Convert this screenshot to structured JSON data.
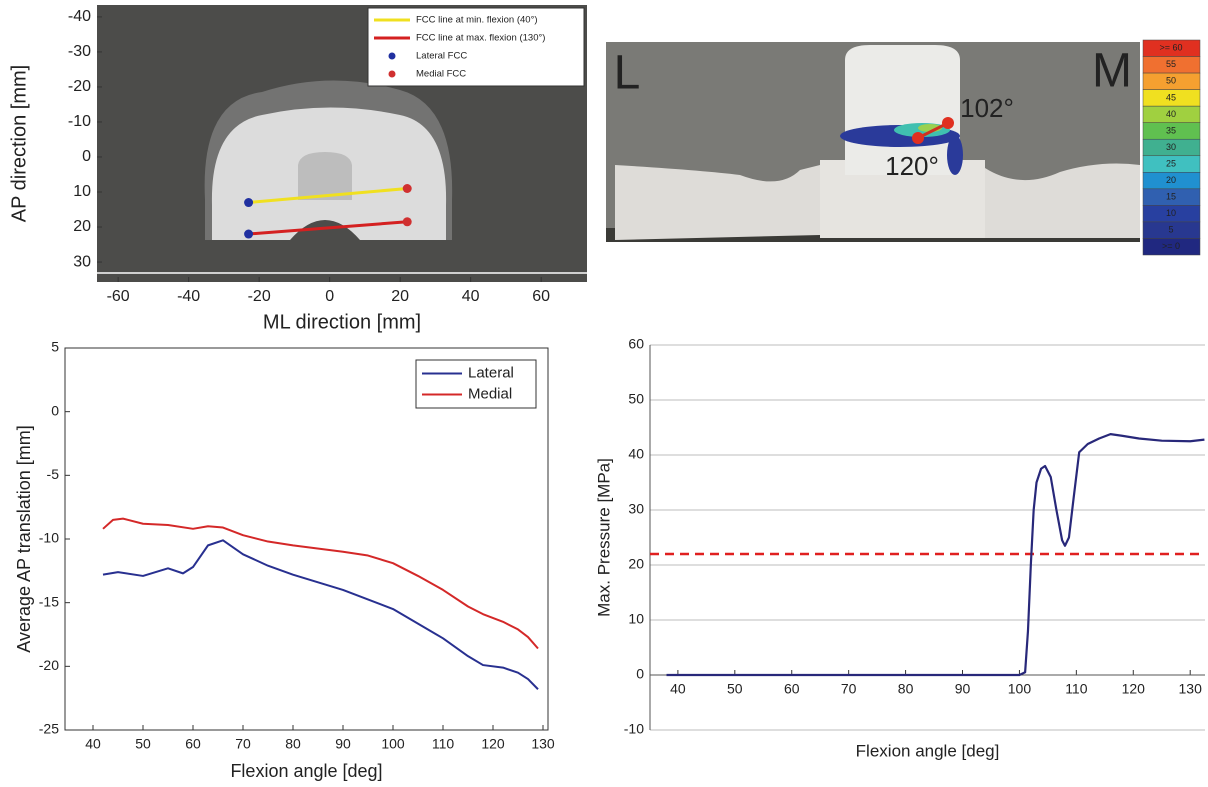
{
  "chart_data": [
    {
      "type": "line",
      "xlabel": "ML direction [mm]",
      "ylabel": "AP direction [mm]",
      "xlim": [
        -66,
        73
      ],
      "ylim": [
        -43.4,
        35.7
      ],
      "y_inverted": true,
      "xticks": [
        -60,
        -40,
        -20,
        0,
        20,
        40,
        60
      ],
      "yticks": [
        -40,
        -30,
        -20,
        -10,
        0,
        10,
        20,
        30
      ],
      "legend": "top-right",
      "series": [
        {
          "name": "FCC line at min. flexion (40°)",
          "color": "#f0e020",
          "mode": "lines",
          "x": [
            -23,
            22
          ],
          "values": [
            13,
            9
          ]
        },
        {
          "name": "FCC line at max. flexion (130°)",
          "color": "#d42020",
          "mode": "lines",
          "x": [
            -23,
            22
          ],
          "values": [
            22,
            18.5
          ]
        },
        {
          "name": "Lateral FCC",
          "color": "#2030a0",
          "mode": "markers",
          "x": [
            -23,
            -23
          ],
          "values": [
            13,
            22
          ]
        },
        {
          "name": "Medial FCC",
          "color": "#d03030",
          "mode": "markers",
          "x": [
            22,
            22
          ],
          "values": [
            9,
            18.5
          ]
        }
      ]
    },
    {
      "type": "image",
      "annotations": [
        "L",
        "M",
        "102°",
        "120°"
      ],
      "colorbar": {
        "labels": [
          ">= 60",
          "55",
          "50",
          "45",
          "40",
          "35",
          "30",
          "25",
          "20",
          "15",
          "10",
          "5",
          ">= 0"
        ],
        "colors": [
          "#e03020",
          "#f07030",
          "#f5a030",
          "#f0e020",
          "#a0d040",
          "#60c050",
          "#40b090",
          "#40c0c0",
          "#2090d0",
          "#3060b0",
          "#2840a0",
          "#283890",
          "#202880"
        ]
      }
    },
    {
      "type": "line",
      "xlabel": "Flexion angle [deg]",
      "ylabel": "Average AP translation [mm]",
      "xlim": [
        34.4,
        131
      ],
      "ylim": [
        -25,
        5
      ],
      "xticks": [
        40,
        50,
        60,
        70,
        80,
        90,
        100,
        110,
        120,
        130
      ],
      "yticks": [
        -25,
        -20,
        -15,
        -10,
        -5,
        0,
        5
      ],
      "legend": "top-right",
      "frame": true,
      "series": [
        {
          "name": "Lateral",
          "color": "#283090",
          "mode": "lines",
          "x": [
            42,
            45,
            50,
            55,
            58,
            60,
            63,
            66,
            70,
            75,
            80,
            90,
            100,
            110,
            115,
            118,
            122,
            125,
            127,
            129
          ],
          "values": [
            -12.8,
            -12.6,
            -12.9,
            -12.3,
            -12.7,
            -12.2,
            -10.5,
            -10.1,
            -11.2,
            -12.1,
            -12.8,
            -14,
            -15.5,
            -17.8,
            -19.2,
            -19.9,
            -20.1,
            -20.5,
            -21,
            -21.8
          ]
        },
        {
          "name": "Medial",
          "color": "#d42828",
          "mode": "lines",
          "x": [
            42,
            44,
            46,
            50,
            55,
            60,
            63,
            66,
            70,
            75,
            80,
            90,
            95,
            100,
            105,
            110,
            115,
            118,
            122,
            125,
            127,
            129
          ],
          "values": [
            -9.2,
            -8.5,
            -8.4,
            -8.8,
            -8.9,
            -9.2,
            -9,
            -9.1,
            -9.7,
            -10.2,
            -10.5,
            -11,
            -11.3,
            -11.9,
            -12.9,
            -14,
            -15.3,
            -15.9,
            -16.5,
            -17.1,
            -17.7,
            -18.6
          ]
        }
      ]
    },
    {
      "type": "line",
      "xlabel": "Flexion angle [deg]",
      "ylabel": "Max. Pressure [MPa]",
      "xlim": [
        35.1,
        132.6
      ],
      "ylim": [
        -10,
        60
      ],
      "x_axis_crosses": 0,
      "grid": true,
      "xticks": [
        40,
        50,
        60,
        70,
        80,
        90,
        100,
        110,
        120,
        130
      ],
      "yticks": [
        -10,
        0,
        10,
        20,
        30,
        40,
        50,
        60
      ],
      "reference_lines": [
        {
          "value": 22,
          "color": "#e02020",
          "dash": true
        }
      ],
      "series": [
        {
          "color": "#28287a",
          "mode": "lines",
          "x": [
            38,
            60,
            100,
            101,
            101.5,
            102,
            102.5,
            103,
            103.8,
            104.5,
            105.5,
            106.5,
            107.5,
            108,
            108.7,
            109.5,
            110.5,
            112,
            114,
            116,
            118,
            121,
            125,
            130,
            132.5
          ],
          "values": [
            0,
            0,
            0,
            0.5,
            8,
            20,
            30,
            35,
            37.5,
            38,
            36,
            30,
            24.5,
            23.5,
            25,
            32,
            40.5,
            42,
            43,
            43.8,
            43.5,
            43,
            42.6,
            42.5,
            42.8
          ]
        }
      ]
    }
  ]
}
